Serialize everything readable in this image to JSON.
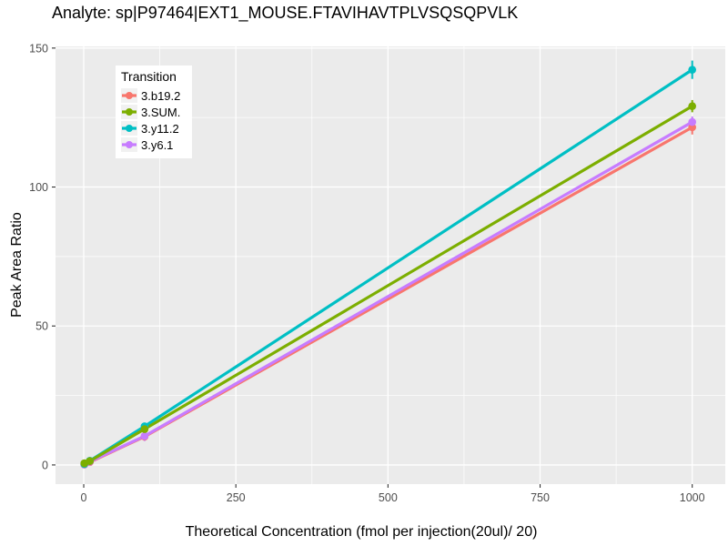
{
  "colors": {
    "panel_bg": "#EBEBEB",
    "gridline": "#FFFFFF",
    "tick_mark": "#333333",
    "tick_label": "#4D4D4D",
    "text": "#000000",
    "legend_bg": "#FFFFFF",
    "legend_key_bg": "#F1F1F1"
  },
  "chart_data": {
    "type": "line",
    "title": "Analyte: sp|P97464|EXT1_MOUSE.FTAVIHAVTPLVSQSQPVLK",
    "xlabel": "Theoretical Concentration (fmol per injection(20ul)/ 20)",
    "ylabel": "Peak Area Ratio",
    "legend_title": "Transition",
    "legend_position": "top-left-inset",
    "grid": true,
    "xlim": [
      -46.4,
      1054.3
    ],
    "ylim": [
      -6.9,
      150.6
    ],
    "x_ticks": [
      0,
      250,
      500,
      750,
      1000
    ],
    "y_ticks": [
      0,
      50,
      100,
      150
    ],
    "x_minor": [
      125,
      375,
      625,
      875
    ],
    "y_minor": [
      25,
      75,
      125
    ],
    "series": [
      {
        "name": "3.b19.2",
        "color": "#F8766D",
        "points": [
          {
            "x": 1,
            "y": 0.1
          },
          {
            "x": 10,
            "y": 1.0
          },
          {
            "x": 100,
            "y": 10.2,
            "e": 1.5
          },
          {
            "x": 1000,
            "y": 121.5,
            "e": 2.6
          }
        ]
      },
      {
        "name": "3.SUM.",
        "color": "#7CAE00",
        "points": [
          {
            "x": 1,
            "y": 0.6
          },
          {
            "x": 10,
            "y": 1.4
          },
          {
            "x": 100,
            "y": 12.9,
            "e": 1.0
          },
          {
            "x": 1000,
            "y": 129.1,
            "e": 2.2
          }
        ]
      },
      {
        "name": "3.y11.2",
        "color": "#00BFC4",
        "points": [
          {
            "x": 1,
            "y": 0.3
          },
          {
            "x": 10,
            "y": 1.5
          },
          {
            "x": 100,
            "y": 13.9,
            "e": 1.0
          },
          {
            "x": 1000,
            "y": 142.2,
            "e": 3.3
          }
        ]
      },
      {
        "name": "3.y6.1",
        "color": "#C77CFF",
        "points": [
          {
            "x": 1,
            "y": 0.2
          },
          {
            "x": 10,
            "y": 1.2
          },
          {
            "x": 100,
            "y": 10.4,
            "e": 1.8
          },
          {
            "x": 1000,
            "y": 123.4,
            "e": 2.0
          }
        ]
      }
    ]
  }
}
